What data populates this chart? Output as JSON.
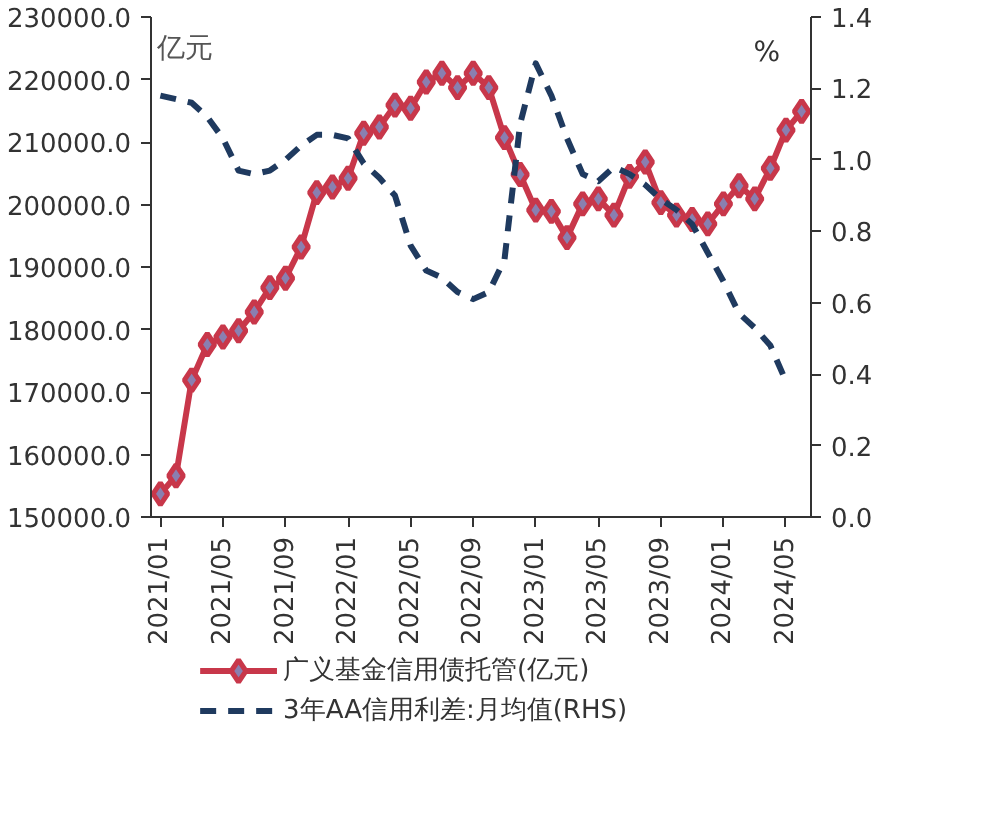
{
  "chart_data": {
    "type": "line",
    "ylabel": "亿元",
    "y2label": "%",
    "categories": [
      "2021/01",
      null,
      null,
      null,
      "2021/05",
      null,
      null,
      null,
      "2021/09",
      null,
      null,
      null,
      "2022/01",
      null,
      null,
      null,
      "2022/05",
      null,
      null,
      null,
      "2022/09",
      null,
      null,
      null,
      "2023/01",
      null,
      null,
      null,
      "2023/05",
      null,
      null,
      null,
      "2023/09",
      null,
      null,
      null,
      "2024/01",
      null,
      null,
      null,
      "2024/05",
      null
    ],
    "series": [
      {
        "name": "广义基金信用债托管(亿元)",
        "color": "#c8374a",
        "marker": "diamond",
        "line_style": "solid",
        "values": [
          153700,
          156600,
          171900,
          177600,
          178800,
          179800,
          182800,
          186700,
          188200,
          193200,
          201900,
          202800,
          204200,
          211400,
          212400,
          215900,
          215400,
          219600,
          221000,
          218700,
          221000,
          218700,
          210700,
          204800,
          199100,
          198900,
          194700,
          200100,
          200900,
          198300,
          204500,
          206800,
          200300,
          198300,
          197600,
          196900,
          200100,
          203000,
          200900,
          205800,
          211900,
          214900
        ]
      },
      {
        "name": "3年AA信用利差:月均值(RHS)",
        "color": "#1f3a5f",
        "marker": "none",
        "line_style": "dashed",
        "axis": "y2",
        "values": [
          1.18,
          1.17,
          1.16,
          1.12,
          1.06,
          0.97,
          0.96,
          0.97,
          1.0,
          1.04,
          1.07,
          1.07,
          1.06,
          0.99,
          0.95,
          0.9,
          0.76,
          0.69,
          0.67,
          0.63,
          0.61,
          0.63,
          0.72,
          1.1,
          1.27,
          1.18,
          1.06,
          0.96,
          0.94,
          0.98,
          0.96,
          0.93,
          0.89,
          0.86,
          0.82,
          0.74,
          0.66,
          0.57,
          0.53,
          0.48,
          0.38,
          null
        ]
      }
    ],
    "ylim": [
      150000,
      230000
    ],
    "yticks": [
      {
        "value": 150000,
        "label": "150000.0"
      },
      {
        "value": 160000,
        "label": "160000.0"
      },
      {
        "value": 170000,
        "label": "170000.0"
      },
      {
        "value": 180000,
        "label": "180000.0"
      },
      {
        "value": 190000,
        "label": "190000.0"
      },
      {
        "value": 200000,
        "label": "200000.0"
      },
      {
        "value": 210000,
        "label": "210000.0"
      },
      {
        "value": 220000,
        "label": "220000.0"
      },
      {
        "value": 230000,
        "label": "230000.0"
      }
    ],
    "y2lim": [
      0,
      1.4
    ],
    "y2ticks": [
      {
        "value": 0,
        "label": "0.0"
      },
      {
        "value": 0.2,
        "label": "0.2"
      },
      {
        "value": 0.4,
        "label": "0.4"
      },
      {
        "value": 0.6,
        "label": "0.6"
      },
      {
        "value": 0.8,
        "label": "0.8"
      },
      {
        "value": 1.0,
        "label": "1.0"
      },
      {
        "value": 1.2,
        "label": "1.2"
      },
      {
        "value": 1.4,
        "label": "1.4"
      }
    ],
    "grid": false,
    "legend": "bottom"
  }
}
